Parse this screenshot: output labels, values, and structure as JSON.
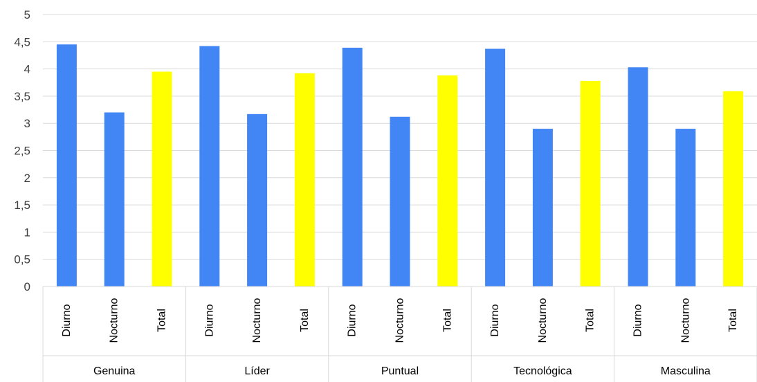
{
  "chart_data": {
    "type": "bar",
    "groups": [
      "Genuina",
      "Líder",
      "Puntual",
      "Tecnológica",
      "Masculina"
    ],
    "subcategories": [
      "Diurno",
      "Nocturno",
      "Total"
    ],
    "values": [
      [
        4.45,
        3.2,
        3.95
      ],
      [
        4.42,
        3.17,
        3.92
      ],
      [
        4.39,
        3.12,
        3.88
      ],
      [
        4.37,
        2.9,
        3.78
      ],
      [
        4.03,
        2.9,
        3.59
      ]
    ],
    "colors": {
      "Diurno": "#4285f4",
      "Nocturno": "#4285f4",
      "Total": "#ffff00"
    },
    "ylim": [
      0,
      5
    ],
    "yticks": [
      "0",
      "0,5",
      "1",
      "1,5",
      "2",
      "2,5",
      "3",
      "3,5",
      "4",
      "4,5",
      "5"
    ],
    "grid": true,
    "legend": "none"
  }
}
